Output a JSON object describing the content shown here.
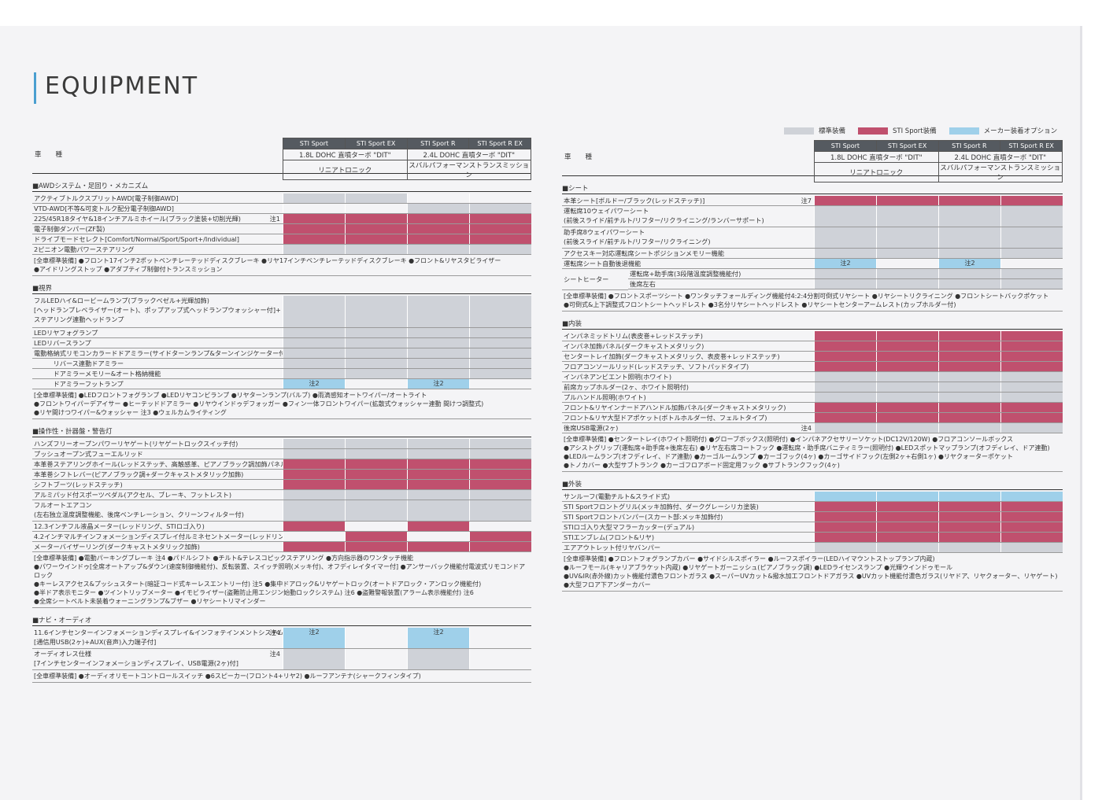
{
  "title": "EQUIPMENT",
  "legend": [
    {
      "label": "標準装備",
      "color": "#cfd2d8"
    },
    {
      "label": "STI Sport装備",
      "color": "#c0506e"
    },
    {
      "label": "メーカー装着オプション",
      "color": "#9fd0ea"
    }
  ],
  "header": {
    "kind_label": "車種",
    "grades": [
      "STI Sport",
      "STI Sport EX",
      "STI Sport R",
      "STI Sport R EX"
    ],
    "engines": [
      "1.8L DOHC 直噴ターボ \"DIT\"",
      "2.4L DOHC 直噴ターボ \"DIT\""
    ],
    "transmissions": [
      "リニアトロニック",
      "スバルパフォーマンストランスミッション"
    ]
  },
  "left": {
    "awd": {
      "title": "■AWDシステム・足回り・メカニズム",
      "rows": [
        {
          "label": "アクティブトルクスプリットAWD[電子制御AWD]",
          "note": "",
          "cells": [
            "g",
            "g",
            "w",
            "w"
          ]
        },
        {
          "label": "VTD-AWD[不等&可変トルク配分電子制御AWD]",
          "note": "",
          "cells": [
            "w",
            "w",
            "g",
            "g"
          ]
        },
        {
          "label": "225/45R18タイヤ&18インチアルミホイール(ブラック塗装+切削光輝)",
          "note": "注1",
          "cells": [
            "r",
            "r",
            "r",
            "r"
          ]
        },
        {
          "label": "電子制御ダンパー(ZF製)",
          "note": "",
          "cells": [
            "r",
            "r",
            "r",
            "r"
          ]
        },
        {
          "label": "ドライブモードセレクト[Comfort/Normal/Sport/Sport+/Individual]",
          "note": "",
          "cells": [
            "r",
            "r",
            "r",
            "r"
          ]
        },
        {
          "label": "2ピニオン電動パワーステアリング",
          "note": "",
          "cells": [
            "g",
            "g",
            "g",
            "g"
          ]
        }
      ],
      "std": [
        "[全車標準装備] ●フロント17インチ2ポットベンチレーテッドディスクブレーキ ●リヤ17インチベンチレーテッドディスクブレーキ ●フロント&リヤスタビライザー",
        "●アイドリングストップ ●アダプティブ制御付トランスミッション"
      ]
    },
    "vision": {
      "title": "■視界",
      "rows": [
        {
          "label": "フルLEDハイ&ロービームランプ(ブラックベゼル+光輝加飾)\n[ヘッドランプレベライザー(オート)、ポップアップ式ヘッドランプウォッシャー付]+\nステアリング連動ヘッドランプ",
          "note": "",
          "h": 3,
          "cells": [
            "g",
            "g",
            "g",
            "g"
          ]
        },
        {
          "label": "LEDリヤフォグランプ",
          "note": "",
          "cells": [
            "g",
            "g",
            "g",
            "g"
          ]
        },
        {
          "label": "LEDリバースランプ",
          "note": "",
          "cells": [
            "g",
            "g",
            "g",
            "g"
          ]
        },
        {
          "label": "電動格納式リモコンカラードドアミラー(サイドターンランプ&ターンインジケーター付)",
          "note": "",
          "cells": [
            "g",
            "g",
            "g",
            "g"
          ]
        },
        {
          "label": "　　　リバース連動ドアミラー",
          "note": "",
          "cells": [
            "g",
            "g",
            "g",
            "g"
          ]
        },
        {
          "label": "　　　ドアミラーメモリー&オート格納機能",
          "note": "",
          "cells": [
            "g",
            "g",
            "g",
            "g"
          ]
        },
        {
          "label": "　　　ドアミラーフットランプ",
          "note": "",
          "cells": [
            "b",
            "w",
            "b",
            "w"
          ],
          "texts": [
            "注2",
            "",
            "注2",
            ""
          ]
        }
      ],
      "std": [
        "[全車標準装備] ●LEDフロントフォグランプ ●LEDリヤコンビランプ ●リヤターンランプ(バルブ) ●雨滴感知オートワイパー/オートライト",
        "●フロントワイパーデアイサー ●ヒーテッドドアミラー ●リヤウインドゥデフォッガー ●フィン一体フロントワイパー(拡散式ウォッシャー連動 間けつ調整式)",
        "●リヤ間けつワイパー&ウォッシャー 注3 ●ウェルカムライティング"
      ]
    },
    "ops": {
      "title": "■操作性・計器盤・警告灯",
      "rows": [
        {
          "label": "ハンズフリーオープンパワーリヤゲート(リヤゲートロックスイッチ付)",
          "note": "",
          "cells": [
            "g",
            "g",
            "g",
            "g"
          ]
        },
        {
          "label": "プッシュオープン式フューエルリッド",
          "note": "",
          "cells": [
            "g",
            "g",
            "g",
            "g"
          ]
        },
        {
          "label": "本革巻ステアリングホイール(レッドステッチ、高触感革、ピアノブラック調加飾パネル)",
          "note": "",
          "cells": [
            "r",
            "r",
            "r",
            "r"
          ]
        },
        {
          "label": "本革巻シフトレバー(ピアノブラック調+ダークキャストメタリック加飾)",
          "note": "",
          "cells": [
            "r",
            "r",
            "r",
            "r"
          ]
        },
        {
          "label": "シフトブーツ(レッドステッチ)",
          "note": "",
          "cells": [
            "r",
            "r",
            "r",
            "r"
          ]
        },
        {
          "label": "アルミパッド付スポーツペダル(アクセル、ブレーキ、フットレスト)",
          "note": "",
          "cells": [
            "g",
            "g",
            "g",
            "g"
          ]
        },
        {
          "label": "フルオートエアコン\n(左右独立温度調整機能、後席ベンチレーション、クリーンフィルター付)",
          "note": "",
          "h": 2,
          "cells": [
            "g",
            "g",
            "g",
            "g"
          ]
        },
        {
          "label": "12.3インチフル液晶メーター(レッドリング、STIロゴ入り)",
          "note": "",
          "cells": [
            "r",
            "w",
            "r",
            "w"
          ]
        },
        {
          "label": "4.2インチマルチインフォメーションディスプレイ付ルミネセントメーター(レッドリング照明、STIロゴ入り)",
          "note": "",
          "cells": [
            "w",
            "r",
            "w",
            "r"
          ]
        },
        {
          "label": "メーターバイザーリング(ダークキャストメタリック加飾)",
          "note": "",
          "cells": [
            "r",
            "r",
            "r",
            "r"
          ]
        }
      ],
      "std": [
        "[全車標準装備] ●電動パーキングブレーキ 注4 ●パドルシフト ●チルト&テレスコピックステアリング ●方向指示器のワンタッチ機能",
        "●パワーウインドゥ[全席オートアップ&ダウン(速度制御機能付)、反転装置、スイッチ照明(メッキ付)、オフディレイタイマー付] ●アンサーバック機能付電波式リモコンドアロック",
        "●キーレスアクセス&プッシュスタート(暗証コード式キーレスエントリー付) 注5 ●集中ドアロック&リヤゲートロック(オートドアロック・アンロック機能付)",
        "●半ドア表示モニター ●ツイントリップメーター ●イモビライザー(盗難防止用エンジン始動ロックシステム) 注6 ●盗難警報装置(アラーム表示機能付) 注6",
        "●全席シートベルト未装着ウォーニングランプ&ブザー ●リヤシートリマインダー"
      ]
    },
    "navi": {
      "title": "■ナビ・オーディオ",
      "rows": [
        {
          "label": "11.6インチセンターインフォメーションディスプレイ&インフォテインメントシステム\n[通信用USB(2ヶ)+AUX(音声)入力端子付]",
          "note": "注4",
          "h": 2,
          "cells": [
            "b",
            "w",
            "b",
            "w"
          ],
          "texts": [
            "注2",
            "",
            "注2",
            ""
          ]
        },
        {
          "label": "オーディオレス仕様\n[7インチセンターインフォメーションディスプレイ、USB電源(2ヶ)付]",
          "note": "注4",
          "h": 2,
          "cells": [
            "g",
            "w",
            "g",
            "w"
          ]
        }
      ],
      "std": [
        "[全車標準装備] ●オーディオリモートコントロールスイッチ ●6スピーカー(フロント4+リヤ2) ●ルーフアンテナ(シャークフィンタイプ)"
      ]
    }
  },
  "right": {
    "seat": {
      "title": "■シート",
      "rows": [
        {
          "label": "本革シート[ボルドー/ブラック(レッドステッチ)]",
          "note": "注7",
          "cells": [
            "r",
            "r",
            "r",
            "r"
          ]
        },
        {
          "label": "運転席10ウェイパワーシート\n(前後スライド/前チルト/リフター/リクライニング/ランバーサポート)",
          "note": "",
          "h": 2,
          "cells": [
            "g",
            "g",
            "g",
            "g"
          ]
        },
        {
          "label": "助手席8ウェイパワーシート\n(前後スライド/前チルト/リフター/リクライニング)",
          "note": "",
          "h": 2,
          "cells": [
            "g",
            "g",
            "g",
            "g"
          ]
        },
        {
          "label": "アクセスキー対応運転席シートポジションメモリー機能",
          "note": "",
          "cells": [
            "g",
            "g",
            "g",
            "g"
          ]
        },
        {
          "label": "運転席シート自動後退機能",
          "note": "",
          "cells": [
            "b",
            "w",
            "b",
            "w"
          ],
          "texts": [
            "注2",
            "",
            "注2",
            ""
          ]
        }
      ],
      "heater_label": "シートヒーター",
      "heater_rows": [
        {
          "label": "運転席+助手席(3段階温度調整機能付)",
          "cells": [
            "g",
            "g",
            "g",
            "g"
          ]
        },
        {
          "label": "後席左右",
          "cells": [
            "g",
            "g",
            "g",
            "g"
          ]
        }
      ],
      "std": [
        "[全車標準装備] ●フロントスポーツシート ●ワンタッチフォールディング機能付4:2:4分割可倒式リヤシート ●リヤシートリクライニング ●フロントシートバックポケット",
        "●可倒式&上下調整式フロントシートヘッドレスト ●3名分リヤシートヘッドレスト ●リヤシートセンターアームレスト(カップホルダー付)"
      ]
    },
    "interior": {
      "title": "■内装",
      "rows": [
        {
          "label": "インパネミッドトリム(表皮巻+レッドステッチ)",
          "note": "",
          "cells": [
            "r",
            "r",
            "r",
            "r"
          ]
        },
        {
          "label": "インパネ加飾パネル(ダークキャストメタリック)",
          "note": "",
          "cells": [
            "r",
            "r",
            "r",
            "r"
          ]
        },
        {
          "label": "センタートレイ加飾(ダークキャストメタリック、表皮巻+レッドステッチ)",
          "note": "",
          "cells": [
            "r",
            "r",
            "r",
            "r"
          ]
        },
        {
          "label": "フロアコンソールリッド(レッドステッチ、ソフトパッドタイプ)",
          "note": "",
          "cells": [
            "r",
            "r",
            "r",
            "r"
          ]
        },
        {
          "label": "インパネアンビエント照明(ホワイト)",
          "note": "",
          "cells": [
            "g",
            "g",
            "g",
            "g"
          ]
        },
        {
          "label": "前席カップホルダー(2ヶ、ホワイト照明付)",
          "note": "",
          "cells": [
            "g",
            "g",
            "g",
            "g"
          ]
        },
        {
          "label": "プルハンドル照明(ホワイト)",
          "note": "",
          "cells": [
            "g",
            "g",
            "g",
            "g"
          ]
        },
        {
          "label": "フロント&リヤインナードアハンドル加飾パネル(ダークキャストメタリック)",
          "note": "",
          "cells": [
            "r",
            "r",
            "r",
            "r"
          ]
        },
        {
          "label": "フロント&リヤ大型ドアポケット(ボトルホルダー付、フェルトタイプ)",
          "note": "",
          "cells": [
            "r",
            "r",
            "r",
            "r"
          ]
        },
        {
          "label": "後席USB電源(2ヶ)",
          "note": "注4",
          "cells": [
            "g",
            "g",
            "g",
            "g"
          ]
        }
      ],
      "std": [
        "[全車標準装備] ●センタートレイ(ホワイト照明付) ●グローブボックス(照明付) ●インパネアクセサリーソケット(DC12V/120W) ●フロアコンソールボックス",
        "●アシストグリップ(運転席+助手席+後席左右) ●リヤ左右席コートフック ●運転席・助手席バニティミラー(照明付) ●LEDスポットマップランプ(オフディレイ、ドア連動)",
        "●LEDルームランプ(オフディレイ、ドア連動) ●カーゴルームランプ ●カーゴフック(4ヶ) ●カーゴサイドフック(左側2ヶ+右側1ヶ) ●リヤクォーターポケット",
        "●トノカバー ●大型サブトランク ●カーゴフロアボード固定用フック ●サブトランクフック(4ヶ)"
      ]
    },
    "exterior": {
      "title": "■外装",
      "rows": [
        {
          "label": "サンルーフ(電動チルト&スライド式)",
          "note": "",
          "cells": [
            "b",
            "b",
            "b",
            "b"
          ]
        },
        {
          "label": "STI Sportフロントグリル(メッキ加飾付、ダークグレーシリカ塗装)",
          "note": "",
          "cells": [
            "r",
            "r",
            "r",
            "r"
          ]
        },
        {
          "label": "STI Sportフロントバンパー(スカート部:メッキ加飾付)",
          "note": "",
          "cells": [
            "r",
            "r",
            "r",
            "r"
          ]
        },
        {
          "label": "STIロゴ入り大型マフラーカッター(デュアル)",
          "note": "",
          "cells": [
            "r",
            "r",
            "r",
            "r"
          ]
        },
        {
          "label": "STIエンブレム(フロント&リヤ)",
          "note": "",
          "cells": [
            "r",
            "r",
            "r",
            "r"
          ]
        },
        {
          "label": "エアアウトレット付リヤバンパー",
          "note": "",
          "cells": [
            "g",
            "g",
            "g",
            "g"
          ]
        }
      ],
      "std": [
        "[全車標準装備] ●フロントフォグランプカバー ●サイドシルスポイラー ●ルーフスポイラー(LEDハイマウントストップランプ内蔵)",
        "●ルーフモール(キャリアブラケット内蔵) ●リヤゲートガーニッシュ(ピアノブラック調) ●LEDライセンスランプ ●光輝ウインドゥモール",
        "●UV&IR(赤外線)カット機能付濃色フロントガラス ●スーパーUVカット&撥水加工フロントドアガラス ●UVカット機能付濃色ガラス(リヤドア、リヤクォーター、リヤゲート)",
        "●大型フロア下アンダーカバー"
      ]
    }
  }
}
